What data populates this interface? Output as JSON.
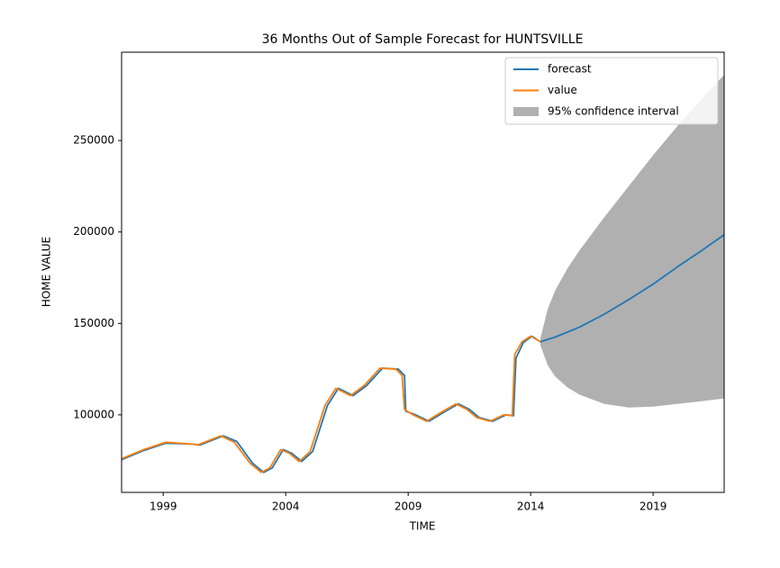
{
  "chart_data": {
    "type": "line",
    "title": "36 Months Out of Sample Forecast for HUNTSVILLE",
    "x_label": "TIME",
    "y_label": "HOME VALUE",
    "xlim": [
      1997.3,
      2021.9
    ],
    "ylim": [
      57600,
      298300
    ],
    "xticks": [
      1999,
      2004,
      2009,
      2014,
      2019
    ],
    "yticks": [
      100000,
      150000,
      200000,
      250000
    ],
    "grid": false,
    "legend": "upper right",
    "series": [
      {
        "name": "forecast",
        "color": "#1f77b4",
        "x": [
          1997.3,
          1998.2,
          1999.1,
          2000.2,
          2000.5,
          2001.45,
          2002.0,
          2002.65,
          2003.1,
          2003.45,
          2003.9,
          2004.25,
          2004.65,
          2005.1,
          2005.7,
          2006.15,
          2006.75,
          2007.3,
          2007.95,
          2008.6,
          2008.85,
          2008.9,
          2009.3,
          2009.85,
          2010.4,
          2011.05,
          2011.5,
          2011.9,
          2012.45,
          2013.0,
          2013.3,
          2013.4,
          2013.7,
          2014.05,
          2014.4,
          2015.0,
          2016.0,
          2017.0,
          2018.0,
          2019.0,
          2020.0,
          2021.0,
          2021.9
        ],
        "values": [
          75500,
          80500,
          84500,
          84000,
          83500,
          88500,
          85500,
          73500,
          68500,
          71000,
          81000,
          79000,
          74500,
          80000,
          105000,
          114500,
          110500,
          116000,
          125500,
          125000,
          121500,
          102000,
          100000,
          96500,
          101000,
          106000,
          103000,
          98500,
          96500,
          100000,
          99500,
          131000,
          139500,
          143000,
          140000,
          142500,
          148000,
          155000,
          163000,
          171500,
          181000,
          190000,
          198500
        ]
      },
      {
        "name": "value",
        "color": "#ff7f0e",
        "x": [
          1997.3,
          1998.2,
          1999.1,
          2000.2,
          2000.4,
          2001.35,
          2001.9,
          2002.55,
          2003.0,
          2003.35,
          2003.8,
          2004.15,
          2004.55,
          2005.0,
          2005.6,
          2006.05,
          2006.65,
          2007.2,
          2007.85,
          2008.5,
          2008.75,
          2008.85,
          2009.2,
          2009.75,
          2010.3,
          2010.95,
          2011.4,
          2011.8,
          2012.35,
          2012.9,
          2013.25,
          2013.35,
          2013.65,
          2014.0,
          2014.4
        ],
        "values": [
          76000,
          81000,
          85000,
          84000,
          83500,
          88500,
          85000,
          73500,
          68500,
          71000,
          81000,
          79000,
          74500,
          80000,
          105000,
          114500,
          110500,
          116000,
          125500,
          125000,
          121500,
          103000,
          100000,
          96500,
          101000,
          106000,
          103000,
          98500,
          96500,
          100000,
          99500,
          133000,
          140000,
          143000,
          140000
        ]
      }
    ],
    "interval": {
      "name": "95% confidence interval",
      "color": "#b0b0b0",
      "x": [
        2014.4,
        2014.7,
        2015.0,
        2015.5,
        2016.0,
        2017.0,
        2018.0,
        2019.0,
        2020.0,
        2021.0,
        2021.9
      ],
      "lower": [
        138000,
        127000,
        121000,
        115000,
        111000,
        106000,
        104000,
        104500,
        106000,
        107500,
        109000
      ],
      "upper": [
        142000,
        158000,
        168000,
        180000,
        190000,
        208000,
        225000,
        242000,
        258000,
        273000,
        286000
      ]
    }
  }
}
